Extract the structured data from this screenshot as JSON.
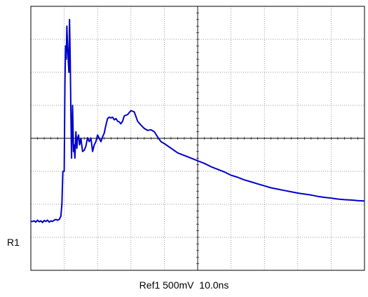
{
  "chart_data": {
    "type": "line",
    "title": "",
    "xlabel": "",
    "ylabel": "",
    "grid": true,
    "divisions": {
      "x": 10,
      "y": 8
    },
    "xlim": [
      0,
      100
    ],
    "ylim": [
      -2000,
      2000
    ],
    "x_units": "ns",
    "y_units": "mV",
    "series": [
      {
        "color": "#0000cc",
        "x": [
          0,
          0.5,
          1,
          1.5,
          2,
          2.5,
          3,
          3.5,
          4,
          4.5,
          5,
          5.5,
          6,
          6.5,
          7,
          7.5,
          8,
          8.5,
          9,
          9.3,
          9.6,
          10,
          10.2,
          10.4,
          10.6,
          10.8,
          11,
          11.2,
          11.4,
          11.6,
          11.8,
          12,
          12.2,
          12.5,
          12.8,
          13,
          13.2,
          13.5,
          13.8,
          14,
          14.3,
          14.6,
          15,
          15.5,
          16,
          16.5,
          17,
          17.5,
          18,
          18.5,
          19,
          19.5,
          20,
          20.5,
          21,
          21.5,
          22,
          22.5,
          23,
          23.5,
          24,
          24.5,
          25,
          25.5,
          26,
          26.5,
          27,
          27.5,
          28,
          29,
          30,
          31,
          32,
          33,
          34,
          35,
          36,
          37,
          38,
          39,
          40,
          42,
          44,
          46,
          48,
          50,
          52,
          54,
          56,
          58,
          60,
          62,
          64,
          66,
          68,
          70,
          72,
          74,
          76,
          78,
          80,
          82,
          84,
          86,
          88,
          90,
          92,
          94,
          96,
          98,
          100
        ],
        "values": [
          -1260,
          -1260,
          -1250,
          -1270,
          -1240,
          -1265,
          -1250,
          -1275,
          -1245,
          -1260,
          -1240,
          -1270,
          -1250,
          -1260,
          -1240,
          -1230,
          -1240,
          -1230,
          -1180,
          -1000,
          -500,
          -500,
          800,
          1400,
          1200,
          1700,
          1400,
          1200,
          1000,
          1800,
          1200,
          400,
          -300,
          500,
          -200,
          -100,
          -300,
          100,
          -150,
          0,
          50,
          -100,
          0,
          -200,
          -180,
          -120,
          10,
          -50,
          0,
          -200,
          -100,
          -50,
          50,
          0,
          -50,
          20,
          80,
          200,
          300,
          320,
          310,
          320,
          280,
          300,
          260,
          250,
          220,
          260,
          340,
          360,
          420,
          400,
          260,
          200,
          150,
          120,
          130,
          100,
          20,
          -50,
          -80,
          -150,
          -220,
          -260,
          -300,
          -340,
          -380,
          -430,
          -470,
          -510,
          -560,
          -590,
          -630,
          -660,
          -690,
          -720,
          -750,
          -770,
          -790,
          -810,
          -830,
          -845,
          -860,
          -880,
          -895,
          -905,
          -920,
          -930,
          -935,
          -945,
          -950
        ]
      }
    ]
  },
  "trace_marker": "R1",
  "footer": {
    "channel": "Ref1",
    "volts_per_div": "500mV",
    "time_per_div": "10.0ns"
  }
}
